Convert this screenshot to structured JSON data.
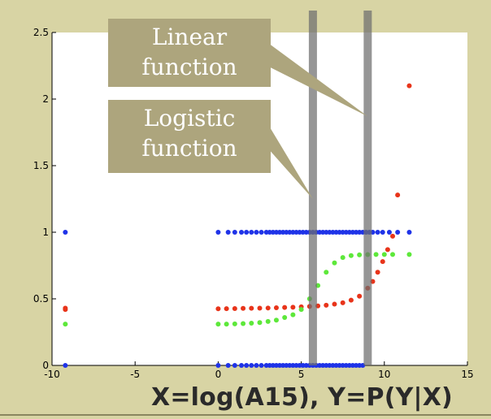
{
  "chart_data": {
    "type": "scatter",
    "xlim": [
      -10,
      15
    ],
    "ylim": [
      0,
      2.5
    ],
    "xticks": [
      -10,
      -5,
      0,
      5,
      10,
      15
    ],
    "yticks": [
      0,
      0.5,
      1,
      1.5,
      2,
      2.5
    ],
    "xtick_labels": [
      "-10",
      "-5",
      "0",
      "5",
      "10",
      "15"
    ],
    "ytick_labels": [
      "0",
      "0.5",
      "1",
      "1.5",
      "2",
      "2.5"
    ],
    "xlabel": "X=log(A15), Y=P(Y|X)",
    "grid": false,
    "series": [
      {
        "color": "#1f33e8",
        "kind": "observed labels",
        "points": [
          [
            -9.2,
            0
          ],
          [
            -9.2,
            1
          ],
          [
            0,
            0
          ],
          [
            0,
            1
          ],
          [
            0.6,
            0
          ],
          [
            0.6,
            1
          ],
          [
            1.0,
            0
          ],
          [
            1.0,
            1
          ],
          [
            1.4,
            0
          ],
          [
            1.4,
            1
          ],
          [
            1.7,
            0
          ],
          [
            1.7,
            1
          ],
          [
            2.0,
            0
          ],
          [
            2.0,
            1
          ],
          [
            2.3,
            0
          ],
          [
            2.3,
            1
          ],
          [
            2.6,
            0
          ],
          [
            2.6,
            1
          ],
          [
            2.9,
            0
          ],
          [
            2.9,
            1
          ],
          [
            3.1,
            0
          ],
          [
            3.1,
            1
          ],
          [
            3.3,
            0
          ],
          [
            3.3,
            1
          ],
          [
            3.5,
            0
          ],
          [
            3.5,
            1
          ],
          [
            3.7,
            0
          ],
          [
            3.7,
            1
          ],
          [
            3.9,
            0
          ],
          [
            3.9,
            1
          ],
          [
            4.1,
            0
          ],
          [
            4.1,
            1
          ],
          [
            4.3,
            0
          ],
          [
            4.3,
            1
          ],
          [
            4.5,
            0
          ],
          [
            4.5,
            1
          ],
          [
            4.7,
            0
          ],
          [
            4.7,
            1
          ],
          [
            4.9,
            0
          ],
          [
            4.9,
            1
          ],
          [
            5.1,
            0
          ],
          [
            5.1,
            1
          ],
          [
            5.3,
            0
          ],
          [
            5.3,
            1
          ],
          [
            5.5,
            0
          ],
          [
            5.5,
            1
          ],
          [
            5.7,
            0
          ],
          [
            5.7,
            1
          ],
          [
            5.9,
            0
          ],
          [
            5.9,
            1
          ],
          [
            6.1,
            0
          ],
          [
            6.1,
            1
          ],
          [
            6.3,
            0
          ],
          [
            6.3,
            1
          ],
          [
            6.5,
            0
          ],
          [
            6.5,
            1
          ],
          [
            6.7,
            0
          ],
          [
            6.7,
            1
          ],
          [
            6.9,
            0
          ],
          [
            6.9,
            1
          ],
          [
            7.1,
            0
          ],
          [
            7.1,
            1
          ],
          [
            7.3,
            0
          ],
          [
            7.3,
            1
          ],
          [
            7.5,
            0
          ],
          [
            7.5,
            1
          ],
          [
            7.7,
            0
          ],
          [
            7.7,
            1
          ],
          [
            7.9,
            0
          ],
          [
            7.9,
            1
          ],
          [
            8.1,
            0
          ],
          [
            8.1,
            1
          ],
          [
            8.3,
            0
          ],
          [
            8.3,
            1
          ],
          [
            8.5,
            0
          ],
          [
            8.5,
            1
          ],
          [
            8.7,
            0
          ],
          [
            8.7,
            1
          ],
          [
            8.9,
            1
          ],
          [
            9.1,
            1
          ],
          [
            9.3,
            1
          ],
          [
            9.6,
            1
          ],
          [
            9.9,
            1
          ],
          [
            10.3,
            1
          ],
          [
            10.8,
            1
          ],
          [
            11.5,
            1
          ]
        ]
      },
      {
        "color": "#e8341a",
        "kind": "linear function",
        "points": [
          [
            -9.2,
            0.43
          ],
          [
            -9.2,
            0.42
          ],
          [
            0,
            0.425
          ],
          [
            0.5,
            0.426
          ],
          [
            1,
            0.427
          ],
          [
            1.5,
            0.428
          ],
          [
            2,
            0.429
          ],
          [
            2.5,
            0.43
          ],
          [
            3,
            0.431
          ],
          [
            3.5,
            0.433
          ],
          [
            4,
            0.435
          ],
          [
            4.5,
            0.437
          ],
          [
            5,
            0.44
          ],
          [
            5.5,
            0.443
          ],
          [
            6,
            0.447
          ],
          [
            6.5,
            0.452
          ],
          [
            7,
            0.46
          ],
          [
            7.5,
            0.47
          ],
          [
            8,
            0.49
          ],
          [
            8.5,
            0.52
          ],
          [
            9,
            0.58
          ],
          [
            9.3,
            0.63
          ],
          [
            9.6,
            0.7
          ],
          [
            9.9,
            0.78
          ],
          [
            10.2,
            0.87
          ],
          [
            10.5,
            0.97
          ],
          [
            10.8,
            1.28
          ],
          [
            11.5,
            2.1
          ]
        ]
      },
      {
        "color": "#5de83a",
        "kind": "logistic function",
        "points": [
          [
            -9.2,
            0.31
          ],
          [
            0,
            0.31
          ],
          [
            0.5,
            0.31
          ],
          [
            1,
            0.312
          ],
          [
            1.5,
            0.314
          ],
          [
            2,
            0.317
          ],
          [
            2.5,
            0.322
          ],
          [
            3,
            0.33
          ],
          [
            3.5,
            0.34
          ],
          [
            4,
            0.36
          ],
          [
            4.5,
            0.38
          ],
          [
            5,
            0.42
          ],
          [
            5.5,
            0.5
          ],
          [
            6,
            0.6
          ],
          [
            6.5,
            0.7
          ],
          [
            7,
            0.77
          ],
          [
            7.5,
            0.81
          ],
          [
            8,
            0.825
          ],
          [
            8.5,
            0.83
          ],
          [
            9,
            0.832
          ],
          [
            9.5,
            0.833
          ],
          [
            10,
            0.833
          ],
          [
            10.5,
            0.833
          ],
          [
            11.5,
            0.833
          ]
        ]
      }
    ],
    "vertical_bands": [
      5.7,
      9.0
    ],
    "annotations": [
      {
        "lines": [
          "Linear",
          "function"
        ],
        "points_to": [
          9.0,
          1.87
        ]
      },
      {
        "lines": [
          "Logistic",
          "function"
        ],
        "points_to": [
          5.7,
          1.25
        ]
      }
    ]
  }
}
